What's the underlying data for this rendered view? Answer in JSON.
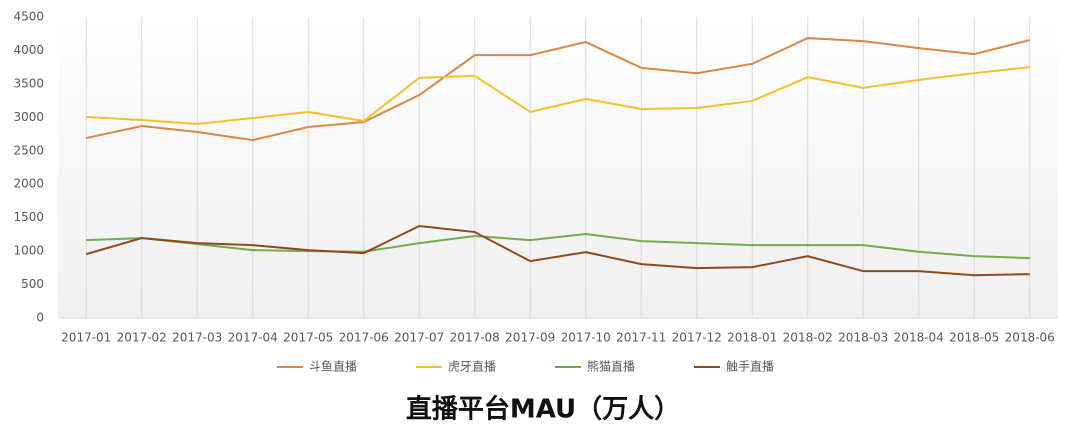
{
  "chart_data": {
    "type": "line",
    "title": "直播平台MAU（万人）",
    "categories": [
      "2017-01",
      "2017-02",
      "2017-03",
      "2017-04",
      "2017-05",
      "2017-06",
      "2017-07",
      "2017-08",
      "2017-09",
      "2017-10",
      "2017-11",
      "2017-12",
      "2018-01",
      "2018-02",
      "2018-03",
      "2018-04",
      "2018-05",
      "2018-06"
    ],
    "series": [
      {
        "name": "斗鱼直播",
        "color": "#de8548",
        "values": [
          2690,
          2870,
          2780,
          2660,
          2855,
          2930,
          3333,
          3930,
          3930,
          4125,
          3740,
          3660,
          3800,
          4185,
          4140,
          4035,
          3945,
          4155
        ]
      },
      {
        "name": "虎牙直播",
        "color": "#f2c12e",
        "values": [
          3005,
          2960,
          2900,
          2990,
          3080,
          2945,
          3590,
          3620,
          3080,
          3275,
          3125,
          3140,
          3245,
          3600,
          3440,
          3560,
          3660,
          3750
        ]
      },
      {
        "name": "熊猫直播",
        "color": "#74ab4c",
        "values": [
          1165,
          1195,
          1105,
          1015,
          1000,
          990,
          1120,
          1225,
          1165,
          1255,
          1150,
          1120,
          1090,
          1090,
          1090,
          990,
          925,
          895
        ]
      },
      {
        "name": "触手直播",
        "color": "#8e4a1c",
        "values": [
          955,
          1195,
          1120,
          1090,
          1015,
          970,
          1375,
          1285,
          850,
          985,
          805,
          745,
          760,
          925,
          700,
          700,
          640,
          655
        ]
      }
    ],
    "ylim": [
      0,
      4500
    ],
    "yticks": [
      0,
      500,
      1000,
      1500,
      2000,
      2500,
      3000,
      3500,
      4000,
      4500
    ],
    "grid": "x",
    "legend": "bottom"
  }
}
